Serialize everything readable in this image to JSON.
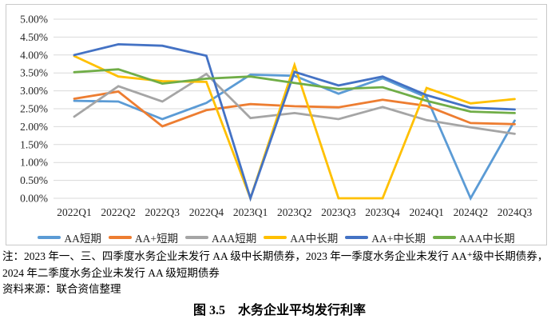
{
  "chart_data": {
    "type": "line",
    "title": "",
    "xlabel": "",
    "ylabel": "",
    "ylim": [
      0,
      5
    ],
    "grid": true,
    "legend_position": "bottom",
    "y_ticks": [
      "5.00%",
      "4.50%",
      "4.00%",
      "3.50%",
      "3.00%",
      "2.50%",
      "2.00%",
      "1.50%",
      "1.00%",
      "0.50%",
      "0.00%"
    ],
    "categories": [
      "2022Q1",
      "2022Q2",
      "2022Q3",
      "2022Q4",
      "2023Q1",
      "2023Q2",
      "2023Q3",
      "2023Q4",
      "2024Q1",
      "2024Q2",
      "2024Q3"
    ],
    "series": [
      {
        "name": "AA短期",
        "color": "#5B9BD5",
        "values": [
          2.72,
          2.7,
          2.21,
          2.66,
          3.45,
          3.42,
          2.92,
          3.35,
          2.82,
          0.0,
          2.17
        ]
      },
      {
        "name": "AA+短期",
        "color": "#ED7D31",
        "values": [
          2.78,
          2.98,
          2.01,
          2.46,
          2.63,
          2.57,
          2.54,
          2.75,
          2.58,
          2.1,
          2.07
        ]
      },
      {
        "name": "AAA短期",
        "color": "#A5A5A5",
        "values": [
          2.28,
          3.13,
          2.7,
          3.47,
          2.24,
          2.38,
          2.21,
          2.55,
          2.18,
          1.98,
          1.8
        ]
      },
      {
        "name": "AA中长期",
        "color": "#FFC000",
        "values": [
          3.97,
          3.4,
          3.27,
          3.25,
          0.0,
          3.72,
          0.0,
          0.0,
          3.08,
          2.65,
          2.77
        ]
      },
      {
        "name": "AA+中长期",
        "color": "#4472C4",
        "values": [
          4.0,
          4.3,
          4.26,
          3.98,
          0.0,
          3.53,
          3.15,
          3.4,
          2.88,
          2.53,
          2.48
        ]
      },
      {
        "name": "AAA中长期",
        "color": "#70AD47",
        "values": [
          3.52,
          3.6,
          3.2,
          3.34,
          3.4,
          3.22,
          3.05,
          3.1,
          2.72,
          2.42,
          2.38
        ]
      }
    ],
    "gridline_color": "#d9d9d9"
  },
  "notes": {
    "line1": "注：2023 年一、三、四季度水务企业未发行 AA 级中长期债券，2023 年一季度水务企业未发行 AA⁺级中长期债券，",
    "line2": "2024 年二季度水务企业未发行 AA 级短期债券",
    "source": "资料来源：联合资信整理"
  },
  "caption": "图 3.5　水务企业平均发行利率"
}
